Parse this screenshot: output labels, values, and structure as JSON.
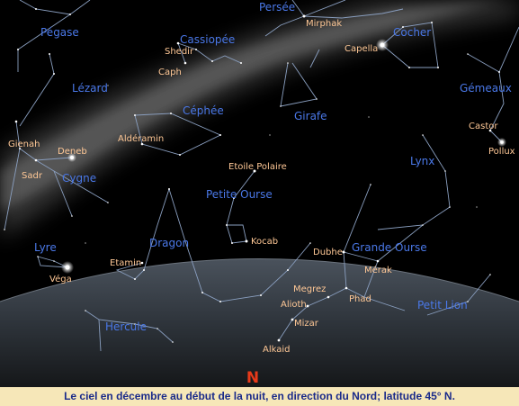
{
  "caption": "Le ciel en décembre au début de la nuit, en direction du Nord; latitude 45° N.",
  "direction": "N",
  "constellations": {
    "pegase": "Pégase",
    "persee": "Persée",
    "cassiopee": "Cassiopée",
    "cocher": "Cocher",
    "lezard": "Lézard",
    "cephee": "Céphée",
    "girafe": "Girafe",
    "gemeaux": "Gémeaux",
    "cygne": "Cygne",
    "lynx": "Lynx",
    "petite_ourse": "Petite Ourse",
    "lyre": "Lyre",
    "dragon": "Dragon",
    "grande_ourse": "Grande Ourse",
    "petit_lion": "Petit Lion",
    "hercule": "Hercule"
  },
  "stars": {
    "mirphak": "Mirphak",
    "capella": "Capella",
    "shedir": "Shedir",
    "caph": "Caph",
    "alderamin": "Aldéramin",
    "castor": "Castor",
    "pollux": "Pollux",
    "gienah": "Gienah",
    "deneb": "Deneb",
    "sadr": "Sadr",
    "etoile_polaire": "Etoile Polaire",
    "kocab": "Kocab",
    "dubhe": "Dubhe",
    "merak": "Mérak",
    "etamin": "Etamin",
    "vega": "Véga",
    "megrez": "Megrez",
    "phad": "Phad",
    "alioth": "Alioth",
    "mizar": "Mizar",
    "alkaid": "Alkaid"
  },
  "colors": {
    "sky": "#000000",
    "constellation_label": "#4a78e8",
    "star_label": "#ffc896",
    "caption_bg": "#f6e7b8",
    "caption_text": "#1a2a8a",
    "north_marker": "#e83a1a"
  }
}
